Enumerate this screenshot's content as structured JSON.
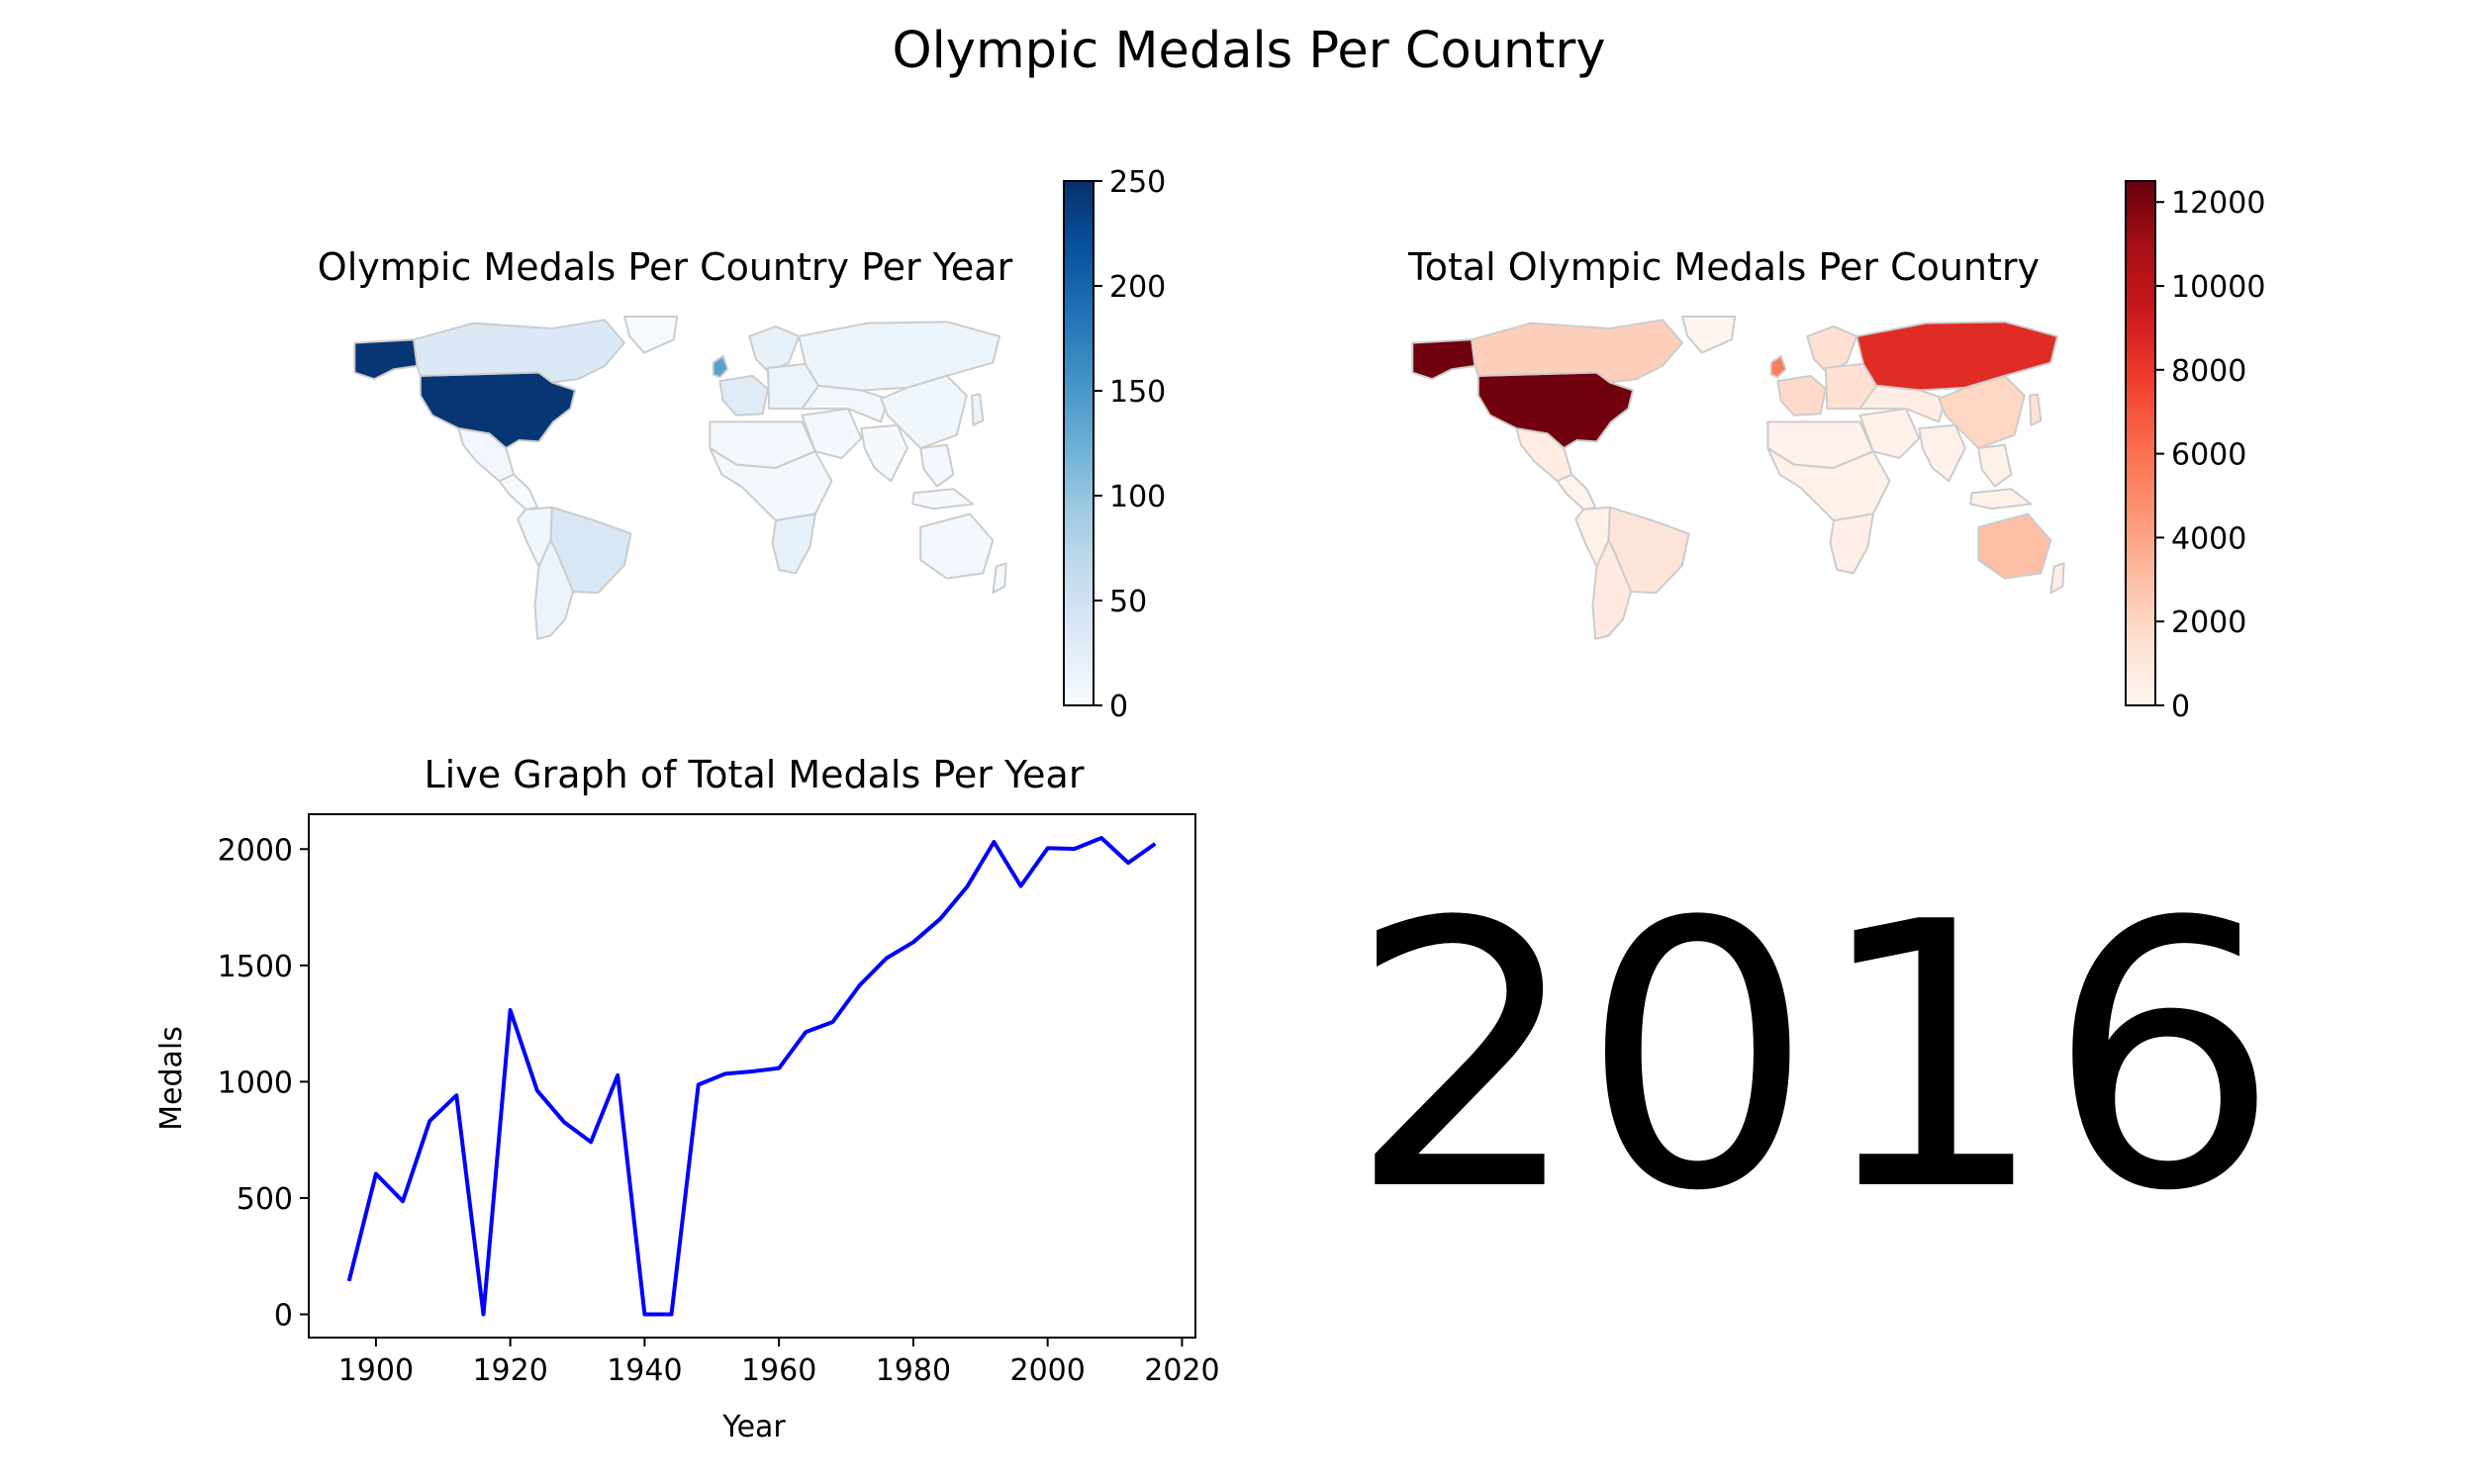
{
  "figure": {
    "suptitle": "Olympic Medals Per Country",
    "year_label": "2016"
  },
  "chart_data": [
    {
      "type": "choropleth",
      "title": "Olympic Medals Per Country Per Year",
      "colormap": "Blues",
      "colormap_stops": [
        "#f7fbff",
        "#deebf7",
        "#c6dbef",
        "#9ecae1",
        "#6baed6",
        "#4292c6",
        "#2171b5",
        "#08519c",
        "#08306b"
      ],
      "border_color": "#cccccc",
      "clim": [
        0,
        250
      ],
      "colorbar_ticks": [
        0,
        50,
        100,
        150,
        200,
        250
      ],
      "regions": [
        {
          "region": "United States",
          "value": 245
        },
        {
          "region": "Alaska",
          "value": 245
        },
        {
          "region": "Canada",
          "value": 35
        },
        {
          "region": "Mexico",
          "value": 8
        },
        {
          "region": "Central America",
          "value": 2
        },
        {
          "region": "Brazil",
          "value": 40
        },
        {
          "region": "Western South America",
          "value": 10
        },
        {
          "region": "Southern Cone",
          "value": 15
        },
        {
          "region": "Greenland",
          "value": 2
        },
        {
          "region": "Western Europe",
          "value": 30
        },
        {
          "region": "United Kingdom",
          "value": 140
        },
        {
          "region": "Scandinavia",
          "value": 20
        },
        {
          "region": "Eastern Europe",
          "value": 15
        },
        {
          "region": "Russia",
          "value": 12
        },
        {
          "region": "North Africa",
          "value": 5
        },
        {
          "region": "Sub-Saharan Africa",
          "value": 6
        },
        {
          "region": "Southern Africa",
          "value": 20
        },
        {
          "region": "Middle East",
          "value": 5
        },
        {
          "region": "Central Asia",
          "value": 8
        },
        {
          "region": "India",
          "value": 3
        },
        {
          "region": "China",
          "value": 10
        },
        {
          "region": "Japan",
          "value": 15
        },
        {
          "region": "Southeast Asia",
          "value": 5
        },
        {
          "region": "Indonesia",
          "value": 3
        },
        {
          "region": "Australia",
          "value": 5
        },
        {
          "region": "New Zealand",
          "value": 5
        }
      ]
    },
    {
      "type": "choropleth",
      "title": "Total Olympic Medals Per Country",
      "colormap": "Reds",
      "colormap_stops": [
        "#fff5f0",
        "#fee0d2",
        "#fcbba1",
        "#fc9272",
        "#fb6a4a",
        "#ef3b2c",
        "#cb181d",
        "#a50f15",
        "#67000d"
      ],
      "border_color": "#cccccc",
      "clim": [
        0,
        12500
      ],
      "colorbar_ticks": [
        0,
        2000,
        4000,
        6000,
        8000,
        10000,
        12000
      ],
      "regions": [
        {
          "region": "United States",
          "value": 12300
        },
        {
          "region": "Alaska",
          "value": 12300
        },
        {
          "region": "Canada",
          "value": 2300
        },
        {
          "region": "Mexico",
          "value": 600
        },
        {
          "region": "Central America",
          "value": 150
        },
        {
          "region": "Brazil",
          "value": 1200
        },
        {
          "region": "Western South America",
          "value": 400
        },
        {
          "region": "Southern Cone",
          "value": 800
        },
        {
          "region": "Greenland",
          "value": 100
        },
        {
          "region": "Western Europe",
          "value": 1800
        },
        {
          "region": "United Kingdom",
          "value": 5500
        },
        {
          "region": "Scandinavia",
          "value": 1500
        },
        {
          "region": "Eastern Europe",
          "value": 1500
        },
        {
          "region": "Russia",
          "value": 8500
        },
        {
          "region": "North Africa",
          "value": 200
        },
        {
          "region": "Sub-Saharan Africa",
          "value": 300
        },
        {
          "region": "Southern Africa",
          "value": 500
        },
        {
          "region": "Middle East",
          "value": 300
        },
        {
          "region": "Central Asia",
          "value": 600
        },
        {
          "region": "India",
          "value": 300
        },
        {
          "region": "China",
          "value": 2000
        },
        {
          "region": "Japan",
          "value": 1500
        },
        {
          "region": "Southeast Asia",
          "value": 400
        },
        {
          "region": "Indonesia",
          "value": 300
        },
        {
          "region": "Australia",
          "value": 3000
        },
        {
          "region": "New Zealand",
          "value": 500
        }
      ]
    },
    {
      "type": "line",
      "title": "Live Graph of Total Medals Per Year",
      "xlabel": "Year",
      "ylabel": "Medals",
      "xlim": [
        1890,
        2022
      ],
      "ylim": [
        -100,
        2150
      ],
      "xticks": [
        1900,
        1920,
        1940,
        1960,
        1980,
        2000,
        2020
      ],
      "yticks": [
        0,
        500,
        1000,
        1500,
        2000
      ],
      "line_color": "#0000ff",
      "x": [
        1896,
        1900,
        1904,
        1908,
        1912,
        1916,
        1920,
        1924,
        1928,
        1932,
        1936,
        1940,
        1944,
        1948,
        1952,
        1956,
        1960,
        1964,
        1968,
        1972,
        1976,
        1980,
        1984,
        1988,
        1992,
        1996,
        2000,
        2004,
        2008,
        2012,
        2016
      ],
      "y": [
        143,
        604,
        486,
        831,
        941,
        0,
        1308,
        962,
        827,
        741,
        1028,
        0,
        0,
        987,
        1034,
        1044,
        1058,
        1214,
        1257,
        1414,
        1531,
        1600,
        1700,
        1838,
        2031,
        1841,
        2004,
        2001,
        2048,
        1941,
        2023
      ]
    }
  ]
}
